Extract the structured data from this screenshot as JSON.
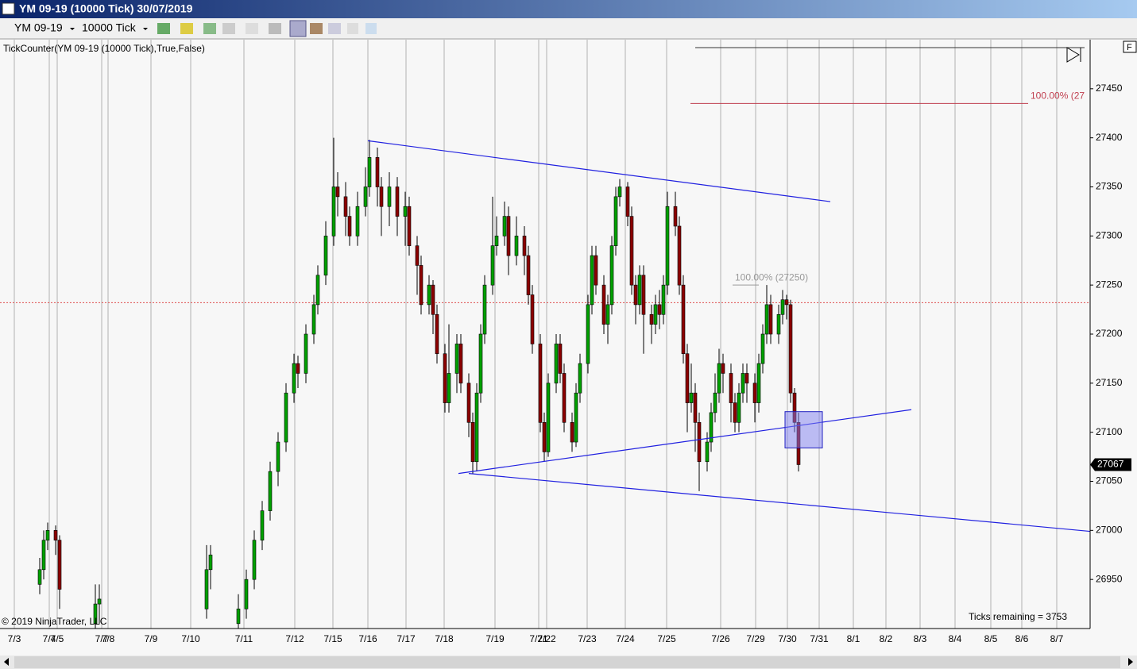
{
  "window": {
    "title": "YM 09-19 (10000 Tick)  30/07/2019"
  },
  "toolbar": {
    "instrument": "YM 09-19",
    "period": "10000 Tick"
  },
  "chart_data": {
    "type": "candlestick",
    "indicator_label": "TickCounter(YM 09-19 (10000 Tick),True,False)",
    "copyright": "© 2019 NinjaTrader, LLC",
    "ticks_remaining": "Ticks remaining = 3753",
    "up_color": "#00a000",
    "down_color": "#8b0000",
    "x": [
      10,
      11,
      12,
      14,
      15,
      24,
      25,
      52,
      53,
      60,
      62,
      64,
      66,
      68,
      70,
      72,
      74,
      75,
      77,
      79,
      80,
      82,
      84,
      85,
      87,
      88,
      90,
      92,
      93,
      95,
      96,
      98,
      100,
      102,
      103,
      105,
      106,
      108,
      109,
      110,
      112,
      113,
      115,
      116,
      118,
      119,
      120,
      121,
      122,
      124,
      125,
      127,
      128,
      130,
      132,
      133,
      134,
      136,
      137,
      138,
      140,
      141,
      142,
      144,
      145,
      146,
      148,
      149,
      150,
      152,
      153,
      154,
      155,
      156,
      158,
      159,
      160,
      161,
      162,
      164,
      165,
      166,
      167,
      168,
      170,
      171,
      172,
      173,
      174,
      175,
      176,
      178,
      179,
      180,
      181,
      182,
      184,
      185,
      186,
      187,
      188,
      190,
      191,
      192,
      193,
      194,
      196,
      197,
      198,
      199,
      200,
      201
    ],
    "open": [
      26945,
      26960,
      26990,
      27000,
      26990,
      26905,
      26925,
      26920,
      26960,
      26905,
      26920,
      26950,
      26990,
      27020,
      27060,
      27090,
      27140,
      27170,
      27160,
      27200,
      27230,
      27260,
      27300,
      27350,
      27340,
      27320,
      27300,
      27330,
      27350,
      27380,
      27350,
      27330,
      27350,
      27320,
      27330,
      27290,
      27270,
      27230,
      27250,
      27220,
      27180,
      27130,
      27160,
      27190,
      27150,
      27110,
      27070,
      27140,
      27200,
      27250,
      27290,
      27300,
      27320,
      27280,
      27300,
      27280,
      27240,
      27190,
      27110,
      27080,
      27150,
      27190,
      27160,
      27110,
      27090,
      27140,
      27170,
      27230,
      27280,
      27250,
      27210,
      27230,
      27290,
      27340,
      27350,
      27320,
      27250,
      27230,
      27260,
      27220,
      27210,
      27230,
      27220,
      27250,
      27330,
      27310,
      27250,
      27180,
      27130,
      27140,
      27110,
      27070,
      27090,
      27120,
      27140,
      27170,
      27160,
      27130,
      27110,
      27140,
      27160,
      27150,
      27130,
      27170,
      27200,
      27230,
      27200,
      27220,
      27235,
      27230,
      27140,
      27110
    ],
    "high": [
      26972,
      27000,
      27008,
      27005,
      26995,
      26945,
      26945,
      26985,
      26985,
      26935,
      26960,
      27000,
      27030,
      27070,
      27100,
      27150,
      27180,
      27178,
      27210,
      27240,
      27270,
      27315,
      27400,
      27365,
      27355,
      27330,
      27345,
      27370,
      27398,
      27390,
      27360,
      27365,
      27360,
      27345,
      27340,
      27300,
      27280,
      27260,
      27255,
      27230,
      27190,
      27210,
      27200,
      27200,
      27160,
      27120,
      27150,
      27210,
      27260,
      27340,
      27320,
      27335,
      27330,
      27320,
      27310,
      27290,
      27250,
      27200,
      27120,
      27160,
      27200,
      27200,
      27170,
      27120,
      27150,
      27180,
      27240,
      27290,
      27290,
      27260,
      27240,
      27300,
      27350,
      27358,
      27355,
      27330,
      27260,
      27270,
      27270,
      27230,
      27240,
      27245,
      27260,
      27345,
      27345,
      27320,
      27260,
      27190,
      27170,
      27150,
      27120,
      27100,
      27130,
      27160,
      27185,
      27180,
      27170,
      27140,
      27150,
      27170,
      27170,
      27160,
      27180,
      27210,
      27250,
      27240,
      27230,
      27245,
      27240,
      27235,
      27145,
      27120
    ],
    "low": [
      26935,
      26950,
      26980,
      26975,
      26920,
      26895,
      26905,
      26910,
      26940,
      26895,
      26910,
      26940,
      26980,
      27010,
      27045,
      27080,
      27130,
      27145,
      27150,
      27190,
      27220,
      27250,
      27290,
      27320,
      27300,
      27290,
      27290,
      27320,
      27340,
      27330,
      27300,
      27310,
      27300,
      27290,
      27280,
      27240,
      27220,
      27220,
      27200,
      27170,
      27120,
      27120,
      27140,
      27140,
      27095,
      27058,
      27060,
      27130,
      27190,
      27240,
      27280,
      27290,
      27260,
      27270,
      27260,
      27230,
      27180,
      27100,
      27070,
      27075,
      27140,
      27150,
      27100,
      27080,
      27085,
      27130,
      27160,
      27220,
      27240,
      27200,
      27190,
      27220,
      27280,
      27330,
      27310,
      27240,
      27210,
      27220,
      27180,
      27190,
      27200,
      27205,
      27210,
      27240,
      27300,
      27240,
      27170,
      27100,
      27120,
      27080,
      27040,
      27060,
      27080,
      27110,
      27130,
      27140,
      27110,
      27100,
      27100,
      27130,
      27130,
      27110,
      27120,
      27160,
      27190,
      27190,
      27190,
      27210,
      27215,
      27130,
      27100,
      27060
    ],
    "close": [
      26960,
      26990,
      27000,
      26990,
      26940,
      26925,
      26930,
      26960,
      26975,
      26920,
      26950,
      26990,
      27020,
      27060,
      27090,
      27140,
      27170,
      27160,
      27200,
      27230,
      27260,
      27300,
      27350,
      27340,
      27320,
      27300,
      27330,
      27350,
      27380,
      27350,
      27330,
      27350,
      27320,
      27330,
      27290,
      27270,
      27230,
      27250,
      27220,
      27180,
      27130,
      27160,
      27190,
      27150,
      27110,
      27070,
      27140,
      27200,
      27250,
      27290,
      27300,
      27320,
      27280,
      27300,
      27280,
      27240,
      27190,
      27110,
      27080,
      27150,
      27190,
      27160,
      27110,
      27090,
      27140,
      27170,
      27230,
      27280,
      27250,
      27210,
      27230,
      27290,
      27340,
      27350,
      27320,
      27250,
      27230,
      27260,
      27220,
      27210,
      27230,
      27220,
      27250,
      27330,
      27310,
      27250,
      27180,
      27130,
      27140,
      27110,
      27070,
      27090,
      27120,
      27140,
      27170,
      27160,
      27130,
      27110,
      27140,
      27160,
      27150,
      27130,
      27170,
      27200,
      27230,
      27200,
      27220,
      27235,
      27230,
      27140,
      27110,
      27067
    ],
    "xlim": [
      0,
      274.4
    ],
    "xticks": [
      {
        "value": 3.6,
        "label": "7/3"
      },
      {
        "value": 12.4,
        "label": "7/4"
      },
      {
        "value": 14.4,
        "label": "7/5"
      },
      {
        "value": 25.6,
        "label": "7/7"
      },
      {
        "value": 27.2,
        "label": "7/8"
      },
      {
        "value": 38,
        "label": "7/9"
      },
      {
        "value": 48,
        "label": "7/10"
      },
      {
        "value": 61.4,
        "label": "7/11"
      },
      {
        "value": 74.2,
        "label": "7/12"
      },
      {
        "value": 83.8,
        "label": "7/15"
      },
      {
        "value": 92.6,
        "label": "7/16"
      },
      {
        "value": 102.2,
        "label": "7/17"
      },
      {
        "value": 111.8,
        "label": "7/18"
      },
      {
        "value": 124.6,
        "label": "7/19"
      },
      {
        "value": 135.6,
        "label": "7/21"
      },
      {
        "value": 137.6,
        "label": "7/22"
      },
      {
        "value": 147.8,
        "label": "7/23"
      },
      {
        "value": 157.4,
        "label": "7/24"
      },
      {
        "value": 167.8,
        "label": "7/25"
      },
      {
        "value": 181.4,
        "label": "7/26"
      },
      {
        "value": 190.2,
        "label": "7/29"
      },
      {
        "value": 198.2,
        "label": "7/30"
      },
      {
        "value": 206.2,
        "label": "7/31"
      },
      {
        "value": 214.8,
        "label": "8/1"
      },
      {
        "value": 223,
        "label": "8/2"
      },
      {
        "value": 231.6,
        "label": "8/3"
      },
      {
        "value": 240.4,
        "label": "8/4"
      },
      {
        "value": 249.4,
        "label": "8/5"
      },
      {
        "value": 257.2,
        "label": "8/6"
      },
      {
        "value": 266,
        "label": "8/7"
      }
    ],
    "ylim": [
      26900,
      27500
    ],
    "yticks": [
      26950,
      27000,
      27050,
      27100,
      27150,
      27200,
      27250,
      27300,
      27350,
      27400,
      27450
    ],
    "last_price": 27067,
    "price_line": 27232,
    "price_line_color": "#e05050",
    "lines": [
      {
        "x": [
          92.6,
          209
        ],
        "y": [
          27397,
          27335
        ],
        "color": "#2020e0"
      },
      {
        "x": [
          115.4,
          229.4
        ],
        "y": [
          27058,
          27123
        ],
        "color": "#2020e0"
      },
      {
        "x": [
          118,
          274.4
        ],
        "y": [
          27058,
          26999
        ],
        "color": "#2020e0"
      }
    ],
    "zone": {
      "x": [
        197.6,
        207
      ],
      "y": [
        27084,
        27121
      ],
      "color": "#8080f0"
    },
    "fib_levels": [
      {
        "label": "100.00% (27",
        "value": 27435,
        "x": [
          173.8,
          258.8
        ],
        "color": "#c04050",
        "label_at": "end"
      },
      {
        "label": "100.00% (27250)",
        "value": 27250,
        "x": [
          184.4,
          191
        ],
        "color": "#999999",
        "label_at": "start"
      }
    ]
  }
}
